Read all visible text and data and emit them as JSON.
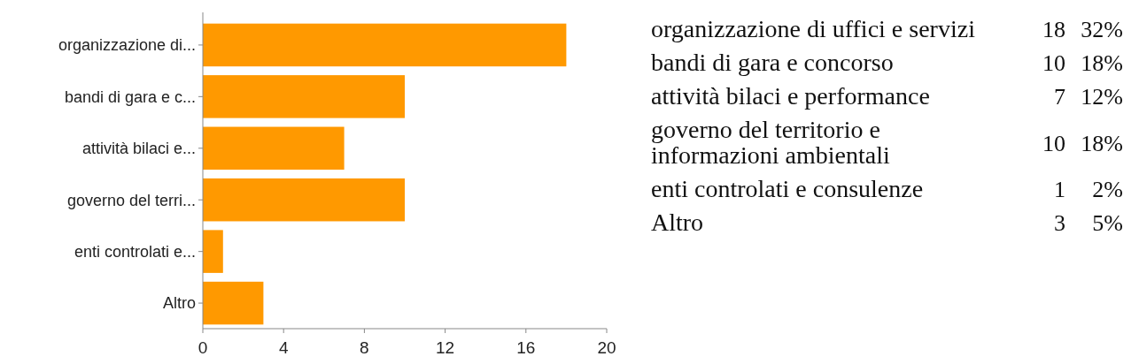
{
  "chart_data": [
    {
      "type": "bar",
      "orientation": "horizontal",
      "categories": [
        "organizzazione di...",
        "bandi di gara e c...",
        "attività bilaci e...",
        "governo del terri...",
        "enti controlati e...",
        "Altro"
      ],
      "values": [
        18,
        10,
        7,
        10,
        1,
        3
      ],
      "color": "#ff9900",
      "xlim": [
        0,
        20
      ],
      "xticks": [
        0,
        4,
        8,
        12,
        16,
        20
      ]
    },
    {
      "type": "other",
      "categories": [
        "organizzazione di uffici e servizi",
        "bandi di gara e concorso",
        "attività bilaci e performance",
        "governo del territorio e informazioni ambientali",
        "enti controlati e consulenze",
        "Altro"
      ],
      "data_labels": true,
      "series": [
        {
          "values": [
            18,
            10,
            7,
            10,
            1,
            3
          ]
        },
        {
          "values": [
            32,
            18,
            12,
            18,
            2,
            5
          ],
          "value_labels": [
            "32%",
            "18%",
            "12%",
            "18%",
            "2%",
            "5%"
          ]
        }
      ]
    }
  ]
}
